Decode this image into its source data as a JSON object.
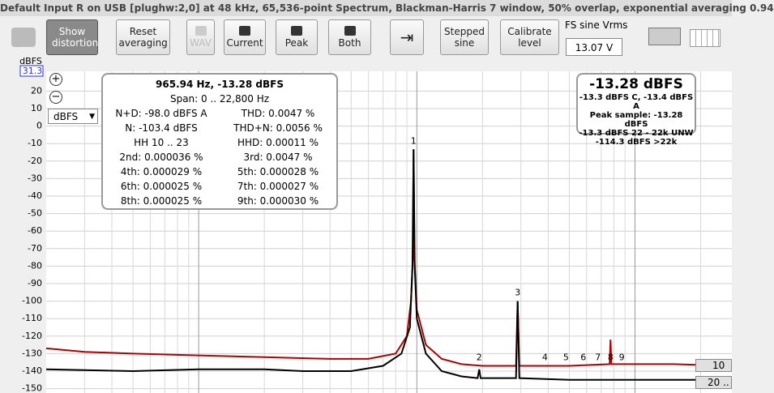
{
  "window_title": "Default Input R on USB [plughw:2,0] at 48 kHz, 65,536-point Spectrum, Blackman-Harris 7 window, 50% overlap, exponential averaging 0.94",
  "toolbar": {
    "show_distortion": "Show distortion",
    "reset_averaging": "Reset averaging",
    "wav": "WAV",
    "current": "Current",
    "peak": "Peak",
    "both": "Both",
    "stepped_sine": "Stepped sine",
    "calibrate_level": "Calibrate level",
    "fs_label": "FS sine Vrms",
    "fs_value": "13.07 V"
  },
  "unit_select": "dBFS",
  "info_panel": {
    "header": "965.94 Hz, -13.28 dBFS",
    "span": "Span: 0 .. 22,800 Hz",
    "rows": [
      [
        "N+D: -98.0 dBFS A",
        "THD: 0.0047 %"
      ],
      [
        "N: -103.4 dBFS",
        "THD+N: 0.0056 %"
      ],
      [
        "HH 10 .. 23",
        "HHD: 0.00011 %"
      ],
      [
        "2nd: 0.000036 %",
        "3rd: 0.0047 %"
      ],
      [
        "4th: 0.000029 %",
        "5th: 0.000028 %"
      ],
      [
        "6th: 0.000025 %",
        "7th: 0.000027 %"
      ],
      [
        "8th: 0.000025 %",
        "9th: 0.000030 %"
      ]
    ]
  },
  "level_panel": {
    "main": "-13.28 dBFS",
    "lines": [
      "-13.3 dBFS C, -13.4 dBFS A",
      "Peak sample: -13.28 dBFS",
      "-13.3 dBFS 22 - 22k UNW",
      "-114.3 dBFS >22k"
    ]
  },
  "side_buttons": [
    "10 ..",
    "20 .."
  ],
  "chart_data": {
    "type": "line",
    "y_label": "dBFS",
    "x_scale": "log",
    "xlim": [
      20,
      27800
    ],
    "ylim": [
      -150,
      {
        "value": 31.3,
        "label": "31.3"
      }
    ],
    "yticks": [
      20,
      10,
      0,
      -10,
      -20,
      -30,
      -40,
      -50,
      -60,
      -70,
      -80,
      -90,
      -100,
      -110,
      -120,
      -130,
      -140,
      -150
    ],
    "xgrid": [
      30,
      40,
      50,
      60,
      70,
      80,
      90,
      100,
      200,
      300,
      400,
      500,
      600,
      700,
      800,
      900,
      1000,
      2000,
      3000,
      4000,
      5000,
      6000,
      7000,
      8000,
      9000,
      10000,
      20000
    ],
    "series": [
      {
        "color": "#b00000",
        "x": [
          20,
          30,
          50,
          100,
          200,
          400,
          600,
          800,
          900,
          940,
          960,
          965.94,
          975,
          1000,
          1100,
          1300,
          1600,
          2000,
          2850,
          2898,
          2950,
          5000,
          7650,
          7728,
          7800,
          10000,
          15000,
          27800
        ],
        "values": [
          -127,
          -129,
          -130,
          -131,
          -132,
          -133,
          -133,
          -130,
          -120,
          -100,
          -75,
          -13.3,
          -75,
          -105,
          -125,
          -133,
          -136,
          -137,
          -137,
          -100,
          -137,
          -137,
          -136,
          -122,
          -136,
          -136,
          -136,
          -137
        ]
      },
      {
        "color": "#000000",
        "x": [
          20,
          50,
          100,
          200,
          300,
          500,
          700,
          850,
          930,
          955,
          965.94,
          978,
          1000,
          1100,
          1300,
          1600,
          1900,
          1932,
          1960,
          2850,
          2898,
          2950,
          5000,
          10000,
          27800
        ],
        "values": [
          -139,
          -140,
          -139,
          -139,
          -140,
          -140,
          -137,
          -130,
          -115,
          -80,
          -13.3,
          -80,
          -110,
          -130,
          -140,
          -143,
          -144,
          -139,
          -144,
          -144,
          -100,
          -144,
          -145,
          -145,
          -145
        ]
      }
    ],
    "harmonics": [
      {
        "label": "1",
        "x": 965.94,
        "y": -13.28
      },
      {
        "label": "2",
        "x": 1932,
        "y": -137
      },
      {
        "label": "3",
        "x": 2898,
        "y": -100
      },
      {
        "label": "4",
        "x": 3864,
        "y": -137
      },
      {
        "label": "5",
        "x": 4830,
        "y": -137
      },
      {
        "label": "6",
        "x": 5796,
        "y": -137
      },
      {
        "label": "7",
        "x": 6762,
        "y": -137
      },
      {
        "label": "8",
        "x": 7728,
        "y": -137
      },
      {
        "label": "9",
        "x": 8693,
        "y": -137
      }
    ]
  }
}
